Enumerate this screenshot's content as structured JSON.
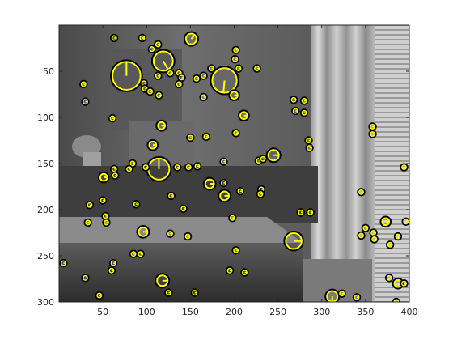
{
  "chart_data": {
    "type": "scatter",
    "title": "",
    "xlabel": "",
    "ylabel": "",
    "xlim": [
      0,
      400
    ],
    "ylim": [
      300,
      0
    ],
    "y_axis_reversed": true,
    "grid": false,
    "background": "grayscale photograph of a dining room (table with vases, chair, curtains, window blinds)",
    "x_ticks": [
      "50",
      "100",
      "150",
      "200",
      "250",
      "300",
      "350",
      "400"
    ],
    "y_ticks": [
      "50",
      "100",
      "150",
      "200",
      "250",
      "300"
    ],
    "marker_color": "#ffff00",
    "marker_style": "circle with radial orientation line (keypoint: x, y, scale, orientation)",
    "series": [
      {
        "points": [
          {
            "x": 77,
            "y": 55,
            "scale": 16,
            "angle": -90
          },
          {
            "x": 119,
            "y": 39,
            "scale": 11,
            "angle": 60
          },
          {
            "x": 189,
            "y": 60,
            "scale": 14,
            "angle": 95
          },
          {
            "x": 114,
            "y": 156,
            "scale": 12,
            "angle": -90
          },
          {
            "x": 268,
            "y": 234,
            "scale": 9,
            "angle": 0
          },
          {
            "x": 151,
            "y": 15,
            "scale": 6,
            "angle": -50
          },
          {
            "x": 245,
            "y": 141,
            "scale": 6,
            "angle": 0
          },
          {
            "x": 118,
            "y": 277,
            "scale": 6,
            "angle": 0
          },
          {
            "x": 312,
            "y": 294,
            "scale": 6,
            "angle": 90
          },
          {
            "x": 96,
            "y": 224,
            "scale": 5,
            "angle": 0
          },
          {
            "x": 172,
            "y": 172,
            "scale": 5,
            "angle": 0
          },
          {
            "x": 189,
            "y": 185,
            "scale": 5,
            "angle": 0
          },
          {
            "x": 117,
            "y": 109,
            "scale": 4,
            "angle": 0
          },
          {
            "x": 107,
            "y": 130,
            "scale": 4,
            "angle": 0
          },
          {
            "x": 51,
            "y": 165,
            "scale": 4,
            "angle": 0
          },
          {
            "x": 200,
            "y": 76,
            "scale": 4,
            "angle": 0
          },
          {
            "x": 211,
            "y": 98,
            "scale": 4,
            "angle": 0
          },
          {
            "x": 387,
            "y": 280,
            "scale": 4,
            "angle": 0
          },
          {
            "x": 373,
            "y": 213,
            "scale": 4,
            "angle": 0
          },
          {
            "x": 63,
            "y": 14
          },
          {
            "x": 95,
            "y": 14
          },
          {
            "x": 106,
            "y": 26
          },
          {
            "x": 113,
            "y": 21
          },
          {
            "x": 113,
            "y": 55
          },
          {
            "x": 127,
            "y": 52
          },
          {
            "x": 114,
            "y": 76
          },
          {
            "x": 97,
            "y": 63
          },
          {
            "x": 98,
            "y": 69
          },
          {
            "x": 104,
            "y": 72
          },
          {
            "x": 137,
            "y": 52
          },
          {
            "x": 140,
            "y": 57
          },
          {
            "x": 137,
            "y": 64
          },
          {
            "x": 157,
            "y": 58
          },
          {
            "x": 165,
            "y": 55
          },
          {
            "x": 165,
            "y": 78
          },
          {
            "x": 174,
            "y": 47
          },
          {
            "x": 202,
            "y": 27
          },
          {
            "x": 201,
            "y": 37
          },
          {
            "x": 205,
            "y": 47
          },
          {
            "x": 226,
            "y": 47
          },
          {
            "x": 28,
            "y": 64
          },
          {
            "x": 30,
            "y": 83
          },
          {
            "x": 61,
            "y": 101
          },
          {
            "x": 168,
            "y": 121
          },
          {
            "x": 202,
            "y": 117
          },
          {
            "x": 150,
            "y": 122
          },
          {
            "x": 268,
            "y": 81
          },
          {
            "x": 270,
            "y": 93
          },
          {
            "x": 280,
            "y": 82
          },
          {
            "x": 280,
            "y": 95
          },
          {
            "x": 285,
            "y": 125
          },
          {
            "x": 286,
            "y": 133
          },
          {
            "x": 358,
            "y": 110
          },
          {
            "x": 358,
            "y": 118
          },
          {
            "x": 84,
            "y": 150
          },
          {
            "x": 63,
            "y": 156
          },
          {
            "x": 80,
            "y": 156
          },
          {
            "x": 99,
            "y": 154
          },
          {
            "x": 135,
            "y": 154
          },
          {
            "x": 148,
            "y": 154
          },
          {
            "x": 158,
            "y": 153
          },
          {
            "x": 188,
            "y": 148
          },
          {
            "x": 228,
            "y": 147
          },
          {
            "x": 233,
            "y": 145
          },
          {
            "x": 64,
            "y": 163
          },
          {
            "x": 128,
            "y": 185
          },
          {
            "x": 88,
            "y": 194
          },
          {
            "x": 207,
            "y": 180
          },
          {
            "x": 231,
            "y": 178
          },
          {
            "x": 230,
            "y": 183
          },
          {
            "x": 142,
            "y": 199
          },
          {
            "x": 188,
            "y": 171
          },
          {
            "x": 35,
            "y": 195
          },
          {
            "x": 50,
            "y": 190
          },
          {
            "x": 33,
            "y": 214
          },
          {
            "x": 53,
            "y": 207
          },
          {
            "x": 54,
            "y": 214
          },
          {
            "x": 198,
            "y": 209
          },
          {
            "x": 276,
            "y": 203
          },
          {
            "x": 287,
            "y": 203
          },
          {
            "x": 345,
            "y": 181
          },
          {
            "x": 350,
            "y": 220
          },
          {
            "x": 359,
            "y": 225
          },
          {
            "x": 394,
            "y": 154
          },
          {
            "x": 396,
            "y": 213
          },
          {
            "x": 345,
            "y": 228
          },
          {
            "x": 360,
            "y": 232
          },
          {
            "x": 378,
            "y": 238
          },
          {
            "x": 387,
            "y": 229
          },
          {
            "x": 5,
            "y": 258
          },
          {
            "x": 30,
            "y": 274
          },
          {
            "x": 62,
            "y": 258
          },
          {
            "x": 60,
            "y": 266
          },
          {
            "x": 85,
            "y": 248
          },
          {
            "x": 93,
            "y": 248
          },
          {
            "x": 127,
            "y": 226
          },
          {
            "x": 147,
            "y": 229
          },
          {
            "x": 202,
            "y": 244
          },
          {
            "x": 195,
            "y": 266
          },
          {
            "x": 212,
            "y": 268
          },
          {
            "x": 46,
            "y": 293
          },
          {
            "x": 125,
            "y": 290
          },
          {
            "x": 155,
            "y": 290
          },
          {
            "x": 323,
            "y": 291
          },
          {
            "x": 340,
            "y": 295
          },
          {
            "x": 377,
            "y": 274
          },
          {
            "x": 394,
            "y": 280
          },
          {
            "x": 385,
            "y": 300
          }
        ]
      }
    ]
  }
}
